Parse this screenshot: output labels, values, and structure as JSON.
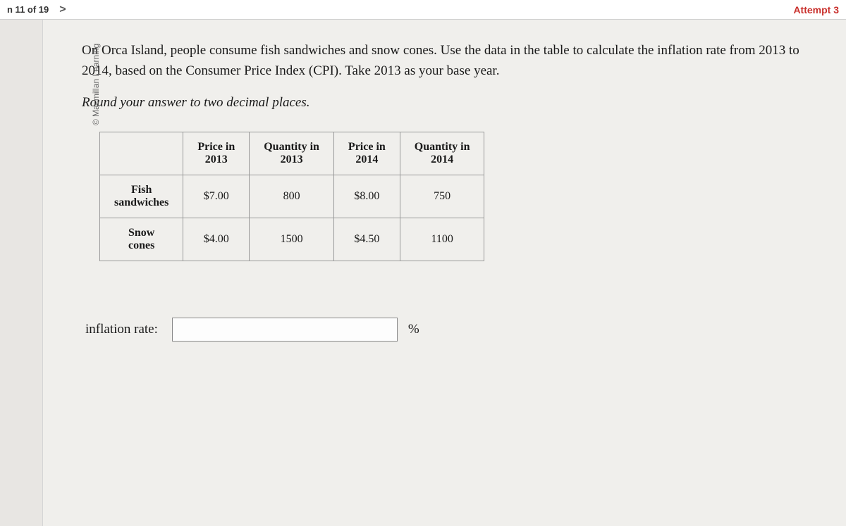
{
  "header": {
    "nav_text": "n 11 of 19",
    "nav_arrow": ">",
    "attempt": "Attempt 3"
  },
  "copyright": "© Macmillan Learning",
  "question": {
    "main_text": "On Orca Island, people consume fish sandwiches and snow cones. Use the data in the table to calculate the inflation rate from 2013 to 2014, based on the Consumer Price Index (CPI). Take 2013 as your base year.",
    "instruction": "Round your answer to two decimal places."
  },
  "table": {
    "headers": {
      "col1": "Price in 2013",
      "col2": "Quantity in 2013",
      "col3": "Price in 2014",
      "col4": "Quantity in 2014"
    },
    "rows": [
      {
        "label": "Fish sandwiches",
        "price_2013": "$7.00",
        "qty_2013": "800",
        "price_2014": "$8.00",
        "qty_2014": "750"
      },
      {
        "label": "Snow cones",
        "price_2013": "$4.00",
        "qty_2013": "1500",
        "price_2014": "$4.50",
        "qty_2014": "1100"
      }
    ]
  },
  "input": {
    "label": "inflation rate:",
    "value": "",
    "unit": "%"
  }
}
